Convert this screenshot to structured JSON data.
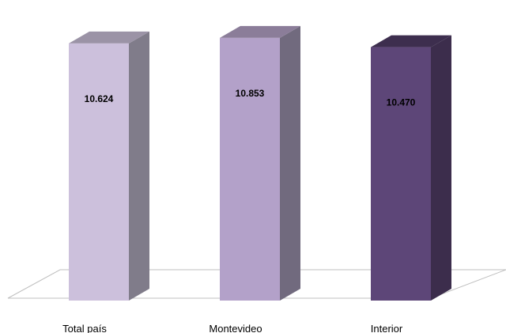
{
  "chart_data": {
    "type": "bar",
    "title": "",
    "xlabel": "",
    "ylabel": "",
    "categories": [
      "Total país",
      "Montevideo",
      "Interior"
    ],
    "values": [
      10.624,
      10.853,
      10.47
    ],
    "value_labels": [
      "10.624",
      "10.853",
      "10.470"
    ],
    "ylim": [
      0,
      11.6
    ],
    "grid": false,
    "legend": "none",
    "three_d": true,
    "colors": {
      "front": [
        "#ccc0dc",
        "#b3a1c9",
        "#5d4678"
      ],
      "top": [
        "#9b93a6",
        "#8b7d99",
        "#3d2e4e"
      ],
      "side": [
        "#807c8a",
        "#716a7e",
        "#3c2d4c"
      ],
      "floor_stroke": "#bfbfbf"
    }
  }
}
